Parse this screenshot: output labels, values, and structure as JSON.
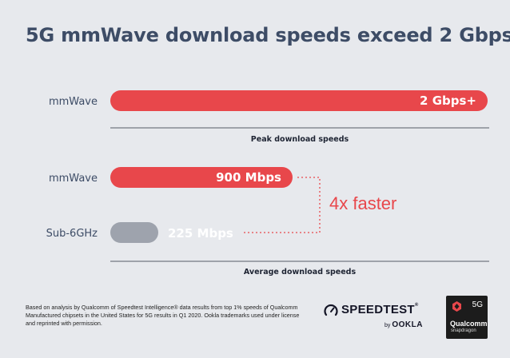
{
  "chart_data": {
    "type": "bar",
    "title": "5G mmWave download speeds exceed 2 Gbps",
    "units": "Mbps",
    "groups": [
      {
        "axis_label": "Peak download speeds",
        "bars": [
          {
            "category": "mmWave",
            "value": 2000,
            "data_label": "2 Gbps+",
            "color": "#e8474b"
          }
        ]
      },
      {
        "axis_label": "Average download speeds",
        "bars": [
          {
            "category": "mmWave",
            "value": 900,
            "data_label": "900 Mbps",
            "color": "#e8474b"
          },
          {
            "category": "Sub-6GHz",
            "value": 225,
            "data_label": "225 Mbps",
            "color": "#9ea3ad"
          }
        ]
      }
    ],
    "annotation": "4x faster",
    "annotation_color": "#e8474b"
  },
  "footnote": "Based on analysis by Qualcomm of Speedtest Intelligence® data results from top 1% speeds of Qualcomm Manufactured chipsets in the United States for 5G results in Q1 2020. Ookla trademarks used under license and reprinted with permission.",
  "logos": {
    "speedtest": "SPEEDTEST",
    "speedtest_tm": "®",
    "speedtest_by": "by",
    "ookla": "OOKLA",
    "qualcomm_gen": "5G",
    "qualcomm": "Qualcomm",
    "snapdragon": "snapdragon"
  },
  "icons": [
    "speedtest-gauge-icon",
    "snapdragon-chip-icon"
  ]
}
